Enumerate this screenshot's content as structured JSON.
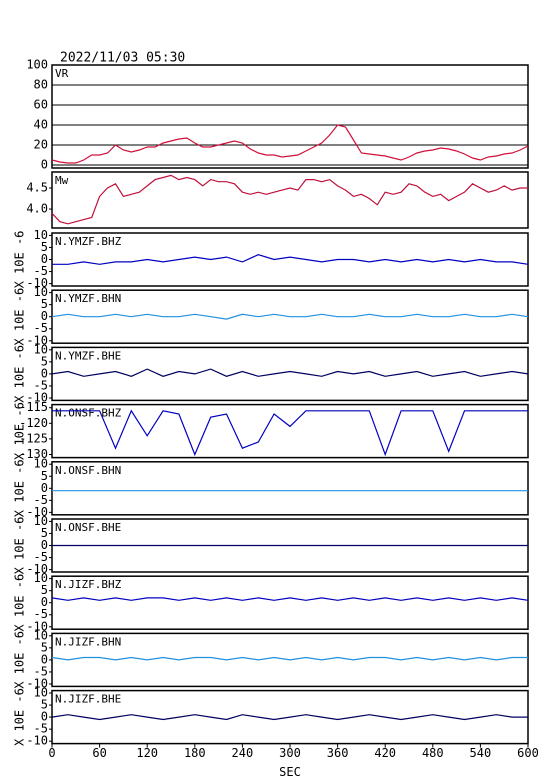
{
  "chart_data": [
    {
      "type": "line",
      "title": "2022/11/03 05:30",
      "label": "VR",
      "grid": true,
      "xlim": [
        0,
        600
      ],
      "ylim": [
        -3,
        100
      ],
      "yticks": [
        0,
        20,
        40,
        60,
        80,
        100
      ],
      "x": [
        0,
        10,
        20,
        30,
        40,
        50,
        60,
        70,
        80,
        90,
        100,
        110,
        120,
        130,
        140,
        150,
        160,
        170,
        180,
        190,
        200,
        210,
        220,
        230,
        240,
        250,
        260,
        270,
        280,
        290,
        300,
        310,
        320,
        330,
        340,
        350,
        360,
        370,
        380,
        390,
        400,
        410,
        420,
        430,
        440,
        450,
        460,
        470,
        480,
        490,
        500,
        510,
        520,
        530,
        540,
        550,
        560,
        570,
        580,
        590,
        600
      ],
      "series": [
        {
          "color": "#d0103a",
          "values": [
            5,
            3,
            2,
            2,
            5,
            10,
            10,
            12,
            20,
            15,
            13,
            15,
            18,
            18,
            22,
            24,
            26,
            27,
            22,
            18,
            18,
            20,
            22,
            24,
            22,
            16,
            12,
            10,
            10,
            8,
            9,
            10,
            14,
            18,
            22,
            30,
            40,
            38,
            25,
            12,
            11,
            10,
            9,
            7,
            5,
            8,
            12,
            14,
            15,
            17,
            16,
            14,
            11,
            7,
            5,
            8,
            9,
            11,
            12,
            15,
            19
          ]
        }
      ]
    },
    {
      "type": "line",
      "label": "Mw",
      "grid": false,
      "xlim": [
        0,
        600
      ],
      "ylim": [
        3.55,
        4.88
      ],
      "yticks": [
        {
          "value": 4,
          "label": "4.0"
        },
        4.5
      ],
      "x": [
        0,
        10,
        20,
        30,
        40,
        50,
        60,
        70,
        80,
        90,
        100,
        110,
        120,
        130,
        140,
        150,
        160,
        170,
        180,
        190,
        200,
        210,
        220,
        230,
        240,
        250,
        260,
        270,
        280,
        290,
        300,
        310,
        320,
        330,
        340,
        350,
        360,
        370,
        380,
        390,
        400,
        410,
        420,
        430,
        440,
        450,
        460,
        470,
        480,
        490,
        500,
        510,
        520,
        530,
        540,
        550,
        560,
        570,
        580,
        590,
        600
      ],
      "series": [
        {
          "color": "#c0103a",
          "values": [
            3.9,
            3.7,
            3.65,
            3.7,
            3.75,
            3.8,
            4.3,
            4.5,
            4.6,
            4.3,
            4.35,
            4.4,
            4.55,
            4.7,
            4.75,
            4.8,
            4.7,
            4.75,
            4.7,
            4.55,
            4.7,
            4.65,
            4.65,
            4.6,
            4.4,
            4.35,
            4.4,
            4.35,
            4.4,
            4.45,
            4.5,
            4.45,
            4.7,
            4.7,
            4.65,
            4.7,
            4.55,
            4.45,
            4.3,
            4.35,
            4.25,
            4.1,
            4.4,
            4.35,
            4.4,
            4.6,
            4.55,
            4.4,
            4.3,
            4.35,
            4.2,
            4.3,
            4.4,
            4.6,
            4.5,
            4.4,
            4.45,
            4.55,
            4.45,
            4.5,
            4.5
          ]
        }
      ]
    },
    {
      "type": "line",
      "label": "N.YMZF.BHZ",
      "ylabel": "X 10E -6",
      "grid": false,
      "xlim": [
        0,
        600
      ],
      "ylim": [
        -11,
        11
      ],
      "yticks": [
        -10,
        -5,
        0,
        5,
        10
      ],
      "x": [
        0,
        20,
        40,
        60,
        80,
        100,
        120,
        140,
        160,
        180,
        200,
        220,
        240,
        260,
        280,
        300,
        320,
        340,
        360,
        380,
        400,
        420,
        440,
        460,
        480,
        500,
        520,
        540,
        560,
        580,
        600
      ],
      "series": [
        {
          "color": "#0000c0",
          "values": [
            -2,
            -2,
            -1,
            -2,
            -1,
            -1,
            0,
            -1,
            0,
            1,
            0,
            1,
            -1,
            2,
            0,
            1,
            0,
            -1,
            0,
            0,
            -1,
            0,
            -1,
            0,
            -1,
            0,
            -1,
            0,
            -1,
            -1,
            -2
          ]
        }
      ]
    },
    {
      "type": "line",
      "label": "N.YMZF.BHN",
      "ylabel": "X 10E -6",
      "grid": false,
      "xlim": [
        0,
        600
      ],
      "ylim": [
        -11,
        11
      ],
      "yticks": [
        -10,
        -5,
        0,
        5,
        10
      ],
      "x": [
        0,
        20,
        40,
        60,
        80,
        100,
        120,
        140,
        160,
        180,
        200,
        220,
        240,
        260,
        280,
        300,
        320,
        340,
        360,
        380,
        400,
        420,
        440,
        460,
        480,
        500,
        520,
        540,
        560,
        580,
        600
      ],
      "series": [
        {
          "color": "#2090e0",
          "values": [
            0,
            1,
            0,
            0,
            1,
            0,
            1,
            0,
            0,
            1,
            0,
            -1,
            1,
            0,
            1,
            0,
            0,
            1,
            0,
            0,
            1,
            0,
            0,
            1,
            0,
            0,
            1,
            0,
            0,
            1,
            0
          ]
        }
      ]
    },
    {
      "type": "line",
      "label": "N.YMZF.BHE",
      "ylabel": "X 10E -6",
      "grid": false,
      "xlim": [
        0,
        600
      ],
      "ylim": [
        -11,
        11
      ],
      "yticks": [
        -10,
        -5,
        0,
        5,
        10
      ],
      "x": [
        0,
        20,
        40,
        60,
        80,
        100,
        120,
        140,
        160,
        180,
        200,
        220,
        240,
        260,
        280,
        300,
        320,
        340,
        360,
        380,
        400,
        420,
        440,
        460,
        480,
        500,
        520,
        540,
        560,
        580,
        600
      ],
      "series": [
        {
          "color": "#000060",
          "values": [
            0,
            1,
            -1,
            0,
            1,
            -1,
            2,
            -1,
            1,
            0,
            2,
            -1,
            1,
            -1,
            0,
            1,
            0,
            -1,
            1,
            0,
            1,
            -1,
            0,
            1,
            -1,
            0,
            1,
            -1,
            0,
            1,
            0
          ]
        }
      ]
    },
    {
      "type": "line",
      "label": "N.ONSF.BHZ",
      "ylabel": "X 10E -6",
      "grid": false,
      "xlim": [
        0,
        600
      ],
      "ylim": [
        -131,
        -114
      ],
      "yticks": [
        -115,
        -120,
        -125,
        -130
      ],
      "x": [
        0,
        20,
        40,
        60,
        80,
        100,
        120,
        140,
        160,
        180,
        200,
        220,
        240,
        260,
        280,
        300,
        320,
        340,
        360,
        380,
        400,
        420,
        440,
        460,
        480,
        500,
        520,
        540,
        560,
        580,
        600
      ],
      "series": [
        {
          "color": "#0000c0",
          "values": [
            -116,
            -116,
            -116,
            -116,
            -128,
            -116,
            -124,
            -116,
            -117,
            -130,
            -118,
            -117,
            -128,
            -126,
            -117,
            -121,
            -116,
            -116,
            -116,
            -116,
            -116,
            -130,
            -116,
            -116,
            -116,
            -129,
            -116,
            -116,
            -116,
            -116,
            -116
          ]
        }
      ]
    },
    {
      "type": "line",
      "label": "N.ONSF.BHN",
      "ylabel": "X 10E -6",
      "grid": false,
      "xlim": [
        0,
        600
      ],
      "ylim": [
        -11,
        11
      ],
      "yticks": [
        -10,
        -5,
        0,
        5,
        10
      ],
      "x": [
        0,
        20,
        40,
        60,
        80,
        100,
        120,
        140,
        160,
        180,
        200,
        220,
        240,
        260,
        280,
        300,
        320,
        340,
        360,
        380,
        400,
        420,
        440,
        460,
        480,
        500,
        520,
        540,
        560,
        580,
        600
      ],
      "series": [
        {
          "color": "#2090e0",
          "values": [
            -1,
            -1,
            -1,
            -1,
            -1,
            -1,
            -1,
            -1,
            -1,
            -1,
            -1,
            -1,
            -1,
            -1,
            -1,
            -1,
            -1,
            -1,
            -1,
            -1,
            -1,
            -1,
            -1,
            -1,
            -1,
            -1,
            -1,
            -1,
            -1,
            -1,
            -1
          ]
        }
      ]
    },
    {
      "type": "line",
      "label": "N.ONSF.BHE",
      "ylabel": "X 10E -6",
      "grid": false,
      "xlim": [
        0,
        600
      ],
      "ylim": [
        -11,
        11
      ],
      "yticks": [
        -10,
        -5,
        0,
        5,
        10
      ],
      "x": [
        0,
        20,
        40,
        60,
        80,
        100,
        120,
        140,
        160,
        180,
        200,
        220,
        240,
        260,
        280,
        300,
        320,
        340,
        360,
        380,
        400,
        420,
        440,
        460,
        480,
        500,
        520,
        540,
        560,
        580,
        600
      ],
      "series": [
        {
          "color": "#000060",
          "values": [
            0,
            0,
            0,
            0,
            0,
            0,
            0,
            0,
            0,
            0,
            0,
            0,
            0,
            0,
            0,
            0,
            0,
            0,
            0,
            0,
            0,
            0,
            0,
            0,
            0,
            0,
            0,
            0,
            0,
            0,
            0
          ]
        }
      ]
    },
    {
      "type": "line",
      "label": "N.JIZF.BHZ",
      "ylabel": "X 10E -6",
      "grid": false,
      "xlim": [
        0,
        600
      ],
      "ylim": [
        -11,
        11
      ],
      "yticks": [
        -10,
        -5,
        0,
        5,
        10
      ],
      "x": [
        0,
        20,
        40,
        60,
        80,
        100,
        120,
        140,
        160,
        180,
        200,
        220,
        240,
        260,
        280,
        300,
        320,
        340,
        360,
        380,
        400,
        420,
        440,
        460,
        480,
        500,
        520,
        540,
        560,
        580,
        600
      ],
      "series": [
        {
          "color": "#0000c0",
          "values": [
            2,
            1,
            2,
            1,
            2,
            1,
            2,
            2,
            1,
            2,
            1,
            2,
            1,
            2,
            1,
            2,
            1,
            2,
            1,
            2,
            1,
            2,
            1,
            2,
            1,
            2,
            1,
            2,
            1,
            2,
            1
          ]
        }
      ]
    },
    {
      "type": "line",
      "label": "N.JIZF.BHN",
      "ylabel": "X 10E -6",
      "grid": false,
      "xlim": [
        0,
        600
      ],
      "ylim": [
        -11,
        11
      ],
      "yticks": [
        -10,
        -5,
        0,
        5,
        10
      ],
      "x": [
        0,
        20,
        40,
        60,
        80,
        100,
        120,
        140,
        160,
        180,
        200,
        220,
        240,
        260,
        280,
        300,
        320,
        340,
        360,
        380,
        400,
        420,
        440,
        460,
        480,
        500,
        520,
        540,
        560,
        580,
        600
      ],
      "series": [
        {
          "color": "#2090e0",
          "values": [
            1,
            0,
            1,
            1,
            0,
            1,
            0,
            1,
            0,
            1,
            1,
            0,
            1,
            0,
            1,
            0,
            1,
            0,
            1,
            0,
            1,
            1,
            0,
            1,
            0,
            1,
            0,
            1,
            0,
            1,
            1
          ]
        }
      ]
    },
    {
      "type": "line",
      "label": "N.JIZF.BHE",
      "ylabel": "X 10E -6",
      "grid": false,
      "xlim": [
        0,
        600
      ],
      "ylim": [
        -11,
        11
      ],
      "yticks": [
        -10,
        -5,
        0,
        5,
        10
      ],
      "xticks": [
        0,
        60,
        120,
        180,
        240,
        300,
        360,
        420,
        480,
        540,
        600
      ],
      "xlabel": "SEC",
      "x": [
        0,
        20,
        40,
        60,
        80,
        100,
        120,
        140,
        160,
        180,
        200,
        220,
        240,
        260,
        280,
        300,
        320,
        340,
        360,
        380,
        400,
        420,
        440,
        460,
        480,
        500,
        520,
        540,
        560,
        580,
        600
      ],
      "series": [
        {
          "color": "#000060",
          "values": [
            0,
            1,
            0,
            -1,
            0,
            1,
            0,
            -1,
            0,
            1,
            0,
            -1,
            1,
            0,
            -1,
            0,
            1,
            0,
            -1,
            0,
            1,
            0,
            -1,
            0,
            1,
            0,
            -1,
            0,
            1,
            0,
            0
          ]
        }
      ]
    }
  ]
}
